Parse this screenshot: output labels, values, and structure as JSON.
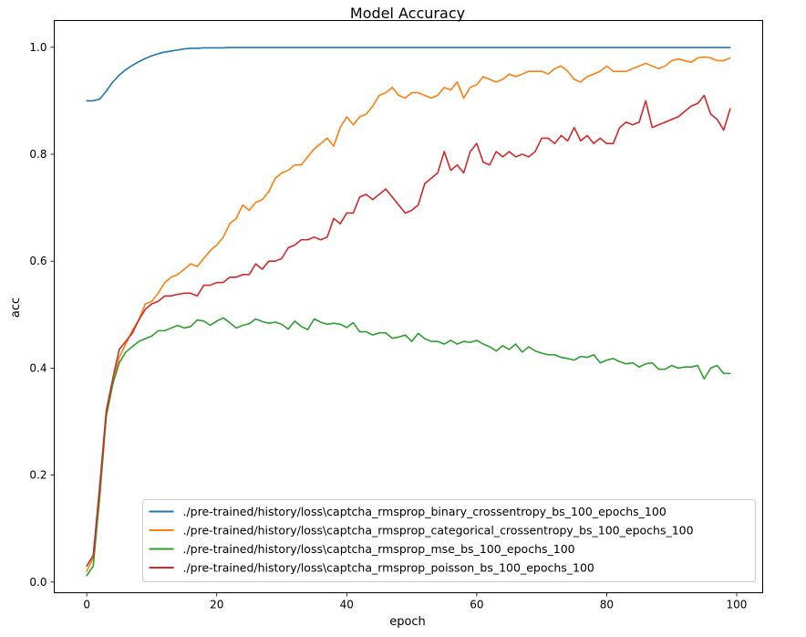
{
  "chart_data": {
    "type": "line",
    "title": "Model Accuracy",
    "xlabel": "epoch",
    "ylabel": "acc",
    "xlim": [
      -5,
      104
    ],
    "ylim": [
      -0.02,
      1.05
    ],
    "xticks": [
      0,
      20,
      40,
      60,
      80,
      100
    ],
    "xtick_labels": [
      "0",
      "20",
      "40",
      "60",
      "80",
      "100"
    ],
    "yticks": [
      0.0,
      0.2,
      0.4,
      0.6,
      0.8,
      1.0
    ],
    "ytick_labels": [
      "0.0",
      "0.2",
      "0.4",
      "0.6",
      "0.8",
      "1.0"
    ],
    "grid": false,
    "legend_position": "lower-right",
    "x": [
      0,
      1,
      2,
      3,
      4,
      5,
      6,
      7,
      8,
      9,
      10,
      11,
      12,
      13,
      14,
      15,
      16,
      17,
      18,
      19,
      20,
      21,
      22,
      23,
      24,
      25,
      26,
      27,
      28,
      29,
      30,
      31,
      32,
      33,
      34,
      35,
      36,
      37,
      38,
      39,
      40,
      41,
      42,
      43,
      44,
      45,
      46,
      47,
      48,
      49,
      50,
      51,
      52,
      53,
      54,
      55,
      56,
      57,
      58,
      59,
      60,
      61,
      62,
      63,
      64,
      65,
      66,
      67,
      68,
      69,
      70,
      71,
      72,
      73,
      74,
      75,
      76,
      77,
      78,
      79,
      80,
      81,
      82,
      83,
      84,
      85,
      86,
      87,
      88,
      89,
      90,
      91,
      92,
      93,
      94,
      95,
      96,
      97,
      98,
      99
    ],
    "series": [
      {
        "name": "./pre-trained/history/loss\\captcha_rmsprop_binary_crossentropy_bs_100_epochs_100",
        "color": "#1f77b4",
        "values": [
          0.9,
          0.9,
          0.903,
          0.918,
          0.935,
          0.948,
          0.958,
          0.966,
          0.973,
          0.979,
          0.984,
          0.988,
          0.991,
          0.993,
          0.995,
          0.997,
          0.998,
          0.998,
          0.999,
          0.999,
          0.999,
          0.999,
          0.9995,
          0.9995,
          0.9995,
          0.9995,
          0.9995,
          0.9995,
          0.9995,
          0.9995,
          0.9995,
          0.9995,
          0.9995,
          0.9995,
          0.9995,
          0.9995,
          0.9995,
          0.9995,
          0.9995,
          0.9995,
          0.9995,
          0.9995,
          0.9995,
          0.9995,
          0.9995,
          0.9995,
          0.9995,
          0.9995,
          0.9995,
          0.9995,
          0.9995,
          0.9995,
          0.9995,
          0.9995,
          0.9995,
          0.9995,
          0.9995,
          0.9995,
          0.9995,
          0.9995,
          0.9995,
          0.9995,
          0.9995,
          0.9995,
          0.9995,
          0.9995,
          0.9995,
          0.9995,
          0.9995,
          0.9995,
          0.9995,
          0.9995,
          0.9995,
          0.9995,
          0.9995,
          0.9995,
          0.9995,
          0.9995,
          0.9995,
          0.9995,
          0.9995,
          0.9995,
          0.9995,
          0.9995,
          0.9995,
          0.9995,
          0.9995,
          0.9995,
          0.9995,
          0.9995,
          0.9995,
          0.9995,
          0.9995,
          0.9995,
          0.9995,
          0.9995,
          0.9995,
          0.9995,
          0.9995,
          0.9995
        ]
      },
      {
        "name": "./pre-trained/history/loss\\captcha_rmsprop_categorical_crossentropy_bs_100_epochs_100",
        "color": "#ff7f0e",
        "values": [
          0.02,
          0.045,
          0.16,
          0.31,
          0.37,
          0.42,
          0.445,
          0.47,
          0.49,
          0.52,
          0.525,
          0.54,
          0.56,
          0.57,
          0.575,
          0.585,
          0.595,
          0.59,
          0.605,
          0.62,
          0.63,
          0.645,
          0.67,
          0.68,
          0.705,
          0.695,
          0.71,
          0.715,
          0.73,
          0.755,
          0.765,
          0.77,
          0.78,
          0.78,
          0.795,
          0.81,
          0.82,
          0.83,
          0.815,
          0.85,
          0.87,
          0.855,
          0.87,
          0.875,
          0.89,
          0.91,
          0.915,
          0.925,
          0.91,
          0.905,
          0.915,
          0.915,
          0.91,
          0.905,
          0.91,
          0.925,
          0.92,
          0.935,
          0.905,
          0.925,
          0.93,
          0.945,
          0.94,
          0.935,
          0.94,
          0.95,
          0.945,
          0.95,
          0.955,
          0.955,
          0.955,
          0.95,
          0.96,
          0.965,
          0.955,
          0.94,
          0.935,
          0.945,
          0.95,
          0.955,
          0.965,
          0.955,
          0.955,
          0.955,
          0.96,
          0.965,
          0.97,
          0.965,
          0.96,
          0.965,
          0.975,
          0.978,
          0.975,
          0.972,
          0.98,
          0.982,
          0.98,
          0.975,
          0.975,
          0.98
        ]
      },
      {
        "name": "./pre-trained/history/loss\\captcha_rmsprop_mse_bs_100_epochs_100",
        "color": "#2ca02c",
        "values": [
          0.012,
          0.03,
          0.16,
          0.31,
          0.37,
          0.41,
          0.43,
          0.44,
          0.45,
          0.455,
          0.46,
          0.47,
          0.47,
          0.475,
          0.48,
          0.475,
          0.478,
          0.49,
          0.488,
          0.48,
          0.488,
          0.494,
          0.485,
          0.475,
          0.48,
          0.483,
          0.492,
          0.487,
          0.484,
          0.486,
          0.482,
          0.473,
          0.488,
          0.478,
          0.472,
          0.492,
          0.486,
          0.482,
          0.484,
          0.482,
          0.476,
          0.485,
          0.468,
          0.468,
          0.462,
          0.466,
          0.466,
          0.456,
          0.458,
          0.462,
          0.45,
          0.465,
          0.455,
          0.45,
          0.45,
          0.445,
          0.452,
          0.445,
          0.45,
          0.448,
          0.452,
          0.445,
          0.44,
          0.432,
          0.442,
          0.435,
          0.445,
          0.43,
          0.44,
          0.432,
          0.428,
          0.425,
          0.425,
          0.42,
          0.418,
          0.415,
          0.422,
          0.42,
          0.425,
          0.41,
          0.415,
          0.418,
          0.412,
          0.408,
          0.41,
          0.402,
          0.408,
          0.41,
          0.398,
          0.398,
          0.405,
          0.4,
          0.402,
          0.402,
          0.405,
          0.38,
          0.4,
          0.405,
          0.39,
          0.39
        ]
      },
      {
        "name": "./pre-trained/history/loss\\captcha_rmsprop_poisson_bs_100_epochs_100",
        "color": "#d62728",
        "values": [
          0.03,
          0.05,
          0.18,
          0.32,
          0.38,
          0.435,
          0.45,
          0.465,
          0.49,
          0.51,
          0.52,
          0.525,
          0.535,
          0.535,
          0.538,
          0.54,
          0.54,
          0.535,
          0.555,
          0.555,
          0.56,
          0.56,
          0.57,
          0.57,
          0.575,
          0.575,
          0.595,
          0.585,
          0.6,
          0.6,
          0.605,
          0.625,
          0.63,
          0.64,
          0.64,
          0.645,
          0.64,
          0.645,
          0.68,
          0.67,
          0.69,
          0.69,
          0.72,
          0.725,
          0.715,
          0.725,
          0.735,
          0.72,
          0.705,
          0.69,
          0.695,
          0.705,
          0.745,
          0.755,
          0.765,
          0.805,
          0.77,
          0.78,
          0.765,
          0.805,
          0.82,
          0.785,
          0.78,
          0.805,
          0.795,
          0.805,
          0.795,
          0.8,
          0.795,
          0.805,
          0.83,
          0.83,
          0.82,
          0.835,
          0.825,
          0.85,
          0.825,
          0.835,
          0.82,
          0.83,
          0.82,
          0.82,
          0.85,
          0.86,
          0.855,
          0.86,
          0.9,
          0.85,
          0.855,
          0.86,
          0.865,
          0.87,
          0.88,
          0.89,
          0.895,
          0.91,
          0.875,
          0.865,
          0.845,
          0.885
        ]
      }
    ]
  }
}
